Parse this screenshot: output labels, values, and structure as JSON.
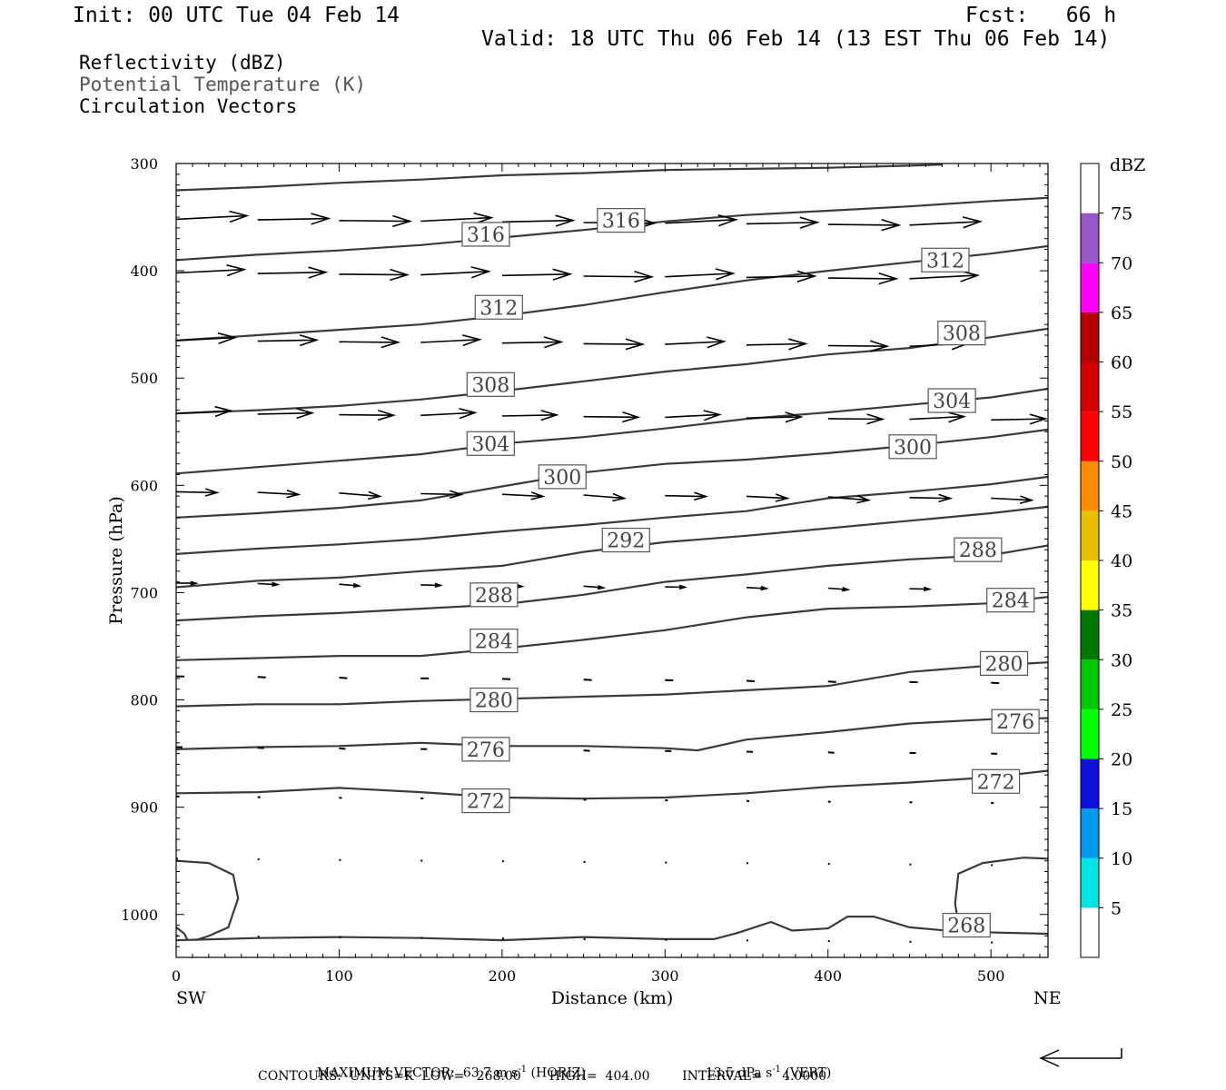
{
  "header": {
    "init": "Init: 00 UTC Tue 04 Feb 14",
    "fcst": "Fcst:   66 h",
    "valid": "Valid: 18 UTC Thu 06 Feb 14 (13 EST Thu 06 Feb 14)"
  },
  "legend": {
    "reflectivity": "Reflectivity (dBZ)",
    "theta": "Potential Temperature (K)",
    "vectors": "Circulation Vectors"
  },
  "footer": {
    "max_vector_label": "MAXIMUM VECTOR:",
    "horiz_value": "63.7",
    "horiz_unit": "m s",
    "horiz_exp": "-1",
    "horiz_tag": "(HORIZ)",
    "vert_value": "13.5",
    "vert_unit": "dPa s",
    "vert_exp": "-1",
    "vert_tag": "(VERT)",
    "contours": "CONTOURS:  UNITS=K  LOW=   268.00       HIGH=  404.00        INTERVAL=     4.0000"
  },
  "colors": {
    "contour": "#3a3a3a",
    "vector": "#000000"
  },
  "chart_data": {
    "type": "contour",
    "xlabel": "Distance (km)",
    "ylabel": "Pressure (hPa)",
    "xlim": [
      0,
      535
    ],
    "ylim": [
      1040,
      300
    ],
    "x_ticks": [
      "0",
      "100",
      "200",
      "300",
      "400",
      "500"
    ],
    "y_ticks": [
      "300",
      "400",
      "500",
      "600",
      "700",
      "800",
      "900",
      "1000"
    ],
    "left_end": "SW",
    "right_end": "NE",
    "contour_labels": [
      {
        "text": "316",
        "x": 190,
        "p": 366
      },
      {
        "text": "316",
        "x": 273,
        "p": 353
      },
      {
        "text": "312",
        "x": 472,
        "p": 390
      },
      {
        "text": "312",
        "x": 198,
        "p": 434
      },
      {
        "text": "308",
        "x": 482,
        "p": 458
      },
      {
        "text": "308",
        "x": 193,
        "p": 506
      },
      {
        "text": "304",
        "x": 476,
        "p": 521
      },
      {
        "text": "304",
        "x": 193,
        "p": 561
      },
      {
        "text": "300",
        "x": 452,
        "p": 564
      },
      {
        "text": "300",
        "x": 237,
        "p": 592
      },
      {
        "text": "292",
        "x": 276,
        "p": 651
      },
      {
        "text": "288",
        "x": 492,
        "p": 660
      },
      {
        "text": "288",
        "x": 195,
        "p": 702
      },
      {
        "text": "284",
        "x": 512,
        "p": 707
      },
      {
        "text": "284",
        "x": 195,
        "p": 745
      },
      {
        "text": "280",
        "x": 508,
        "p": 766
      },
      {
        "text": "280",
        "x": 195,
        "p": 800
      },
      {
        "text": "276",
        "x": 515,
        "p": 820
      },
      {
        "text": "276",
        "x": 190,
        "p": 846
      },
      {
        "text": "272",
        "x": 503,
        "p": 876
      },
      {
        "text": "272",
        "x": 190,
        "p": 894
      },
      {
        "text": "268",
        "x": 485,
        "p": 1010
      }
    ],
    "colorbar": {
      "title": "dBZ",
      "labels": [
        "5",
        "10",
        "15",
        "20",
        "25",
        "30",
        "35",
        "40",
        "45",
        "50",
        "55",
        "60",
        "65",
        "70",
        "75"
      ],
      "colors": [
        "#00e5e5",
        "#0099ee",
        "#1010dd",
        "#00ff00",
        "#00c800",
        "#007800",
        "#ffff00",
        "#e8c000",
        "#ff8c00",
        "#ff0000",
        "#d40000",
        "#b40000",
        "#ff00ff",
        "#9955cc",
        "#ffffff"
      ]
    }
  }
}
